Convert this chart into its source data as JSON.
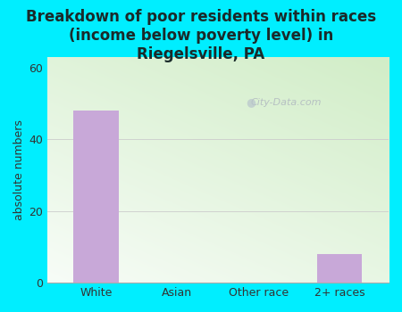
{
  "categories": [
    "White",
    "Asian",
    "Other race",
    "2+ races"
  ],
  "values": [
    48,
    0,
    0,
    8
  ],
  "bar_color": "#c8a8d8",
  "title": "Breakdown of poor residents within races\n(income below poverty level) in\nRiegelsville, PA",
  "ylabel": "absolute numbers",
  "ylim": [
    0,
    63
  ],
  "yticks": [
    0,
    20,
    40,
    60
  ],
  "background_color": "#00eeff",
  "plot_bg_color_top": "#d8ecc8",
  "plot_bg_color_bottom": "#f8fdf4",
  "watermark": "City-Data.com",
  "title_color": "#1a2a2a",
  "title_fontsize": 12,
  "ylabel_fontsize": 9,
  "tick_fontsize": 9
}
